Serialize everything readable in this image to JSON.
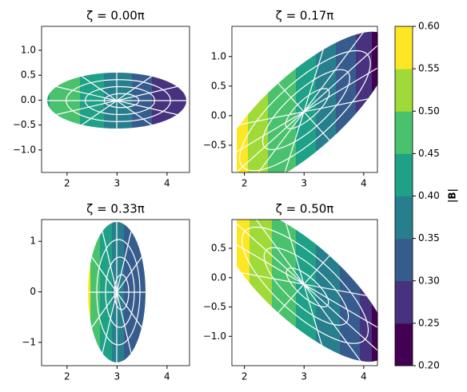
{
  "chart_data": [
    {
      "type": "contour",
      "title": "ζ = 0.00π",
      "xlim": [
        1.49,
        4.45
      ],
      "ylim": [
        -1.45,
        1.48
      ],
      "xticks": [
        2,
        3,
        4
      ],
      "yticks": [
        {
          "value": -1.0,
          "label": "−1.0"
        },
        {
          "value": -0.5,
          "label": "−0.5"
        },
        {
          "value": 0.0,
          "label": "0.0"
        },
        {
          "value": 0.5,
          "label": "0.5"
        },
        {
          "value": 1.0,
          "label": "1.0"
        }
      ]
    },
    {
      "type": "contour",
      "title": "ζ = 0.17π",
      "xlim": [
        1.79,
        4.23
      ],
      "ylim": [
        -0.96,
        1.51
      ],
      "xticks": [
        2,
        3,
        4
      ],
      "yticks": [
        {
          "value": -0.5,
          "label": "−0.5"
        },
        {
          "value": 0.0,
          "label": "0.0"
        },
        {
          "value": 0.5,
          "label": "0.5"
        },
        {
          "value": 1.0,
          "label": "1.0"
        }
      ]
    },
    {
      "type": "contour",
      "title": "ζ = 0.33π",
      "xlim": [
        1.49,
        4.45
      ],
      "ylim": [
        -1.46,
        1.43
      ],
      "xticks": [
        2,
        3,
        4
      ],
      "yticks": [
        {
          "value": -1,
          "label": "−1"
        },
        0,
        1
      ]
    },
    {
      "type": "contour",
      "title": "ζ = 0.50π",
      "xlim": [
        1.79,
        4.23
      ],
      "ylim": [
        -1.5,
        0.99
      ],
      "xticks": [
        2,
        3,
        4
      ],
      "yticks": [
        {
          "value": -1.0,
          "label": "−1.0"
        },
        {
          "value": -0.5,
          "label": "−0.5"
        },
        {
          "value": 0.0,
          "label": "0.0"
        },
        {
          "value": 0.5,
          "label": "0.5"
        }
      ]
    },
    {
      "type": "colorbar",
      "label": "|B|",
      "ylim": [
        0.2,
        0.6
      ],
      "yticks": [
        {
          "value": 0.2,
          "label": "0.20"
        },
        0.25,
        {
          "value": 0.3,
          "label": "0.30"
        },
        0.35,
        {
          "value": 0.4,
          "label": "0.40"
        },
        0.45,
        {
          "value": 0.5,
          "label": "0.50"
        },
        0.55,
        {
          "value": 0.6,
          "label": "0.60"
        }
      ],
      "colors": [
        "#440154",
        "#46327e",
        "#365c8d",
        "#277f8e",
        "#1fa187",
        "#4ac16d",
        "#a0da39",
        "#fde725"
      ]
    }
  ]
}
